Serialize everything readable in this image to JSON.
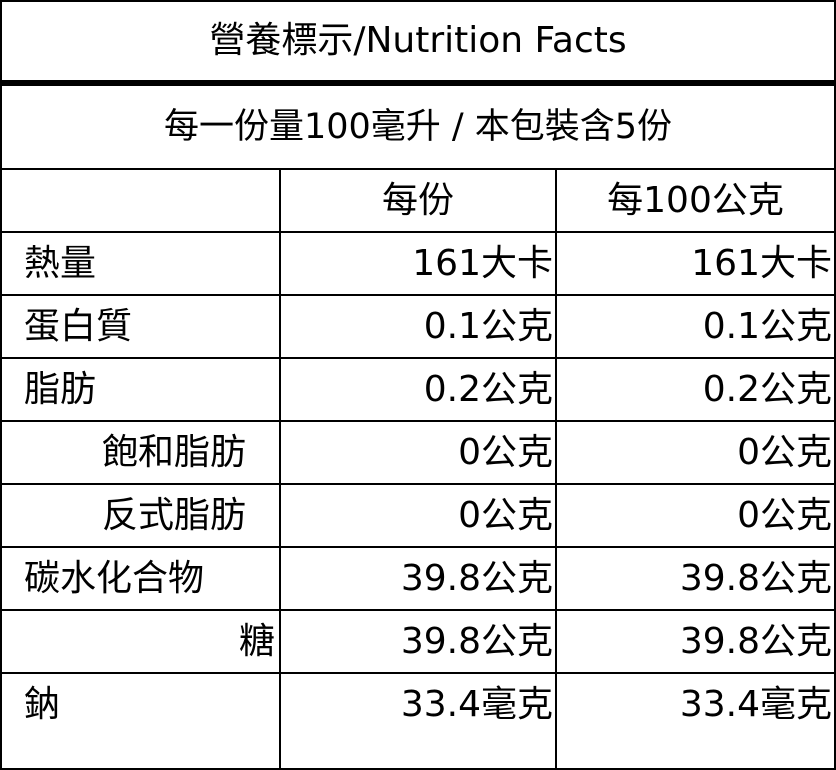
{
  "title": "營養標示/Nutrition Facts",
  "serving_info": "每一份量100毫升 / 本包裝含5份",
  "columns": {
    "name": "",
    "per_serving": "每份",
    "per_100": "每100公克"
  },
  "rows": [
    {
      "name": "熱量",
      "per_serving": "161大卡",
      "per_100": "161大卡"
    },
    {
      "name": "蛋白質",
      "per_serving": "0.1公克",
      "per_100": "0.1公克"
    },
    {
      "name": "脂肪",
      "per_serving": "0.2公克",
      "per_100": "0.2公克"
    },
    {
      "name": "飽和脂肪",
      "per_serving": "0公克",
      "per_100": "0公克"
    },
    {
      "name": "反式脂肪",
      "per_serving": "0公克",
      "per_100": "0公克"
    },
    {
      "name": "碳水化合物",
      "per_serving": "39.8公克",
      "per_100": "39.8公克"
    },
    {
      "name": "糖",
      "per_serving": "39.8公克",
      "per_100": "39.8公克"
    },
    {
      "name": "鈉",
      "per_serving": "33.4毫克",
      "per_100": "33.4毫克"
    }
  ]
}
